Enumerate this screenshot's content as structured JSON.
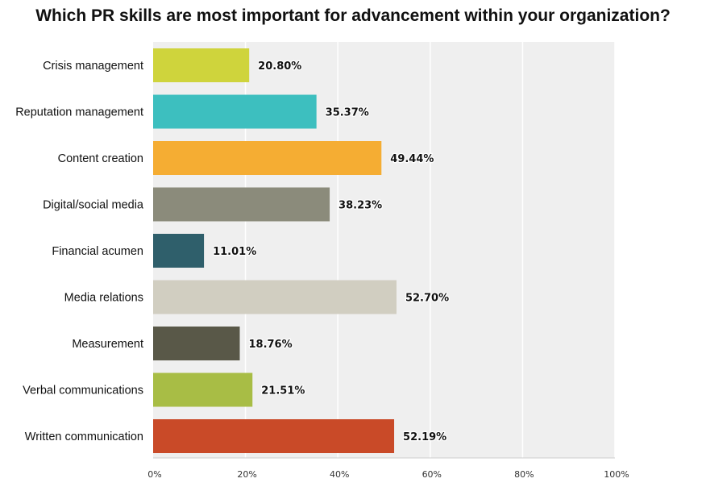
{
  "chart_data": {
    "type": "bar",
    "orientation": "horizontal",
    "title": "Which PR skills are most important for advancement within your organization?",
    "categories": [
      "Crisis management",
      "Reputation management",
      "Content creation",
      "Digital/social media",
      "Financial acumen",
      "Media relations",
      "Measurement",
      "Verbal communications",
      "Written communication"
    ],
    "values": [
      20.8,
      35.37,
      49.44,
      38.23,
      11.01,
      52.7,
      18.76,
      21.51,
      52.19
    ],
    "value_labels": [
      "20.80%",
      "35.37%",
      "49.44%",
      "38.23%",
      "11.01%",
      "52.70%",
      "18.76%",
      "21.51%",
      "52.19%"
    ],
    "bar_colors": [
      "#cfd43c",
      "#3dbfbf",
      "#f5ad33",
      "#8b8b7b",
      "#2f5f6b",
      "#d1cec1",
      "#595848",
      "#a8bd45",
      "#c94a28"
    ],
    "xlim": [
      0,
      100
    ],
    "x_ticks": [
      "0%",
      "20%",
      "40%",
      "60%",
      "80%",
      "100%"
    ],
    "xlabel": "",
    "ylabel": "",
    "grid": true,
    "legend": "none",
    "plot_background": "#efefef"
  }
}
